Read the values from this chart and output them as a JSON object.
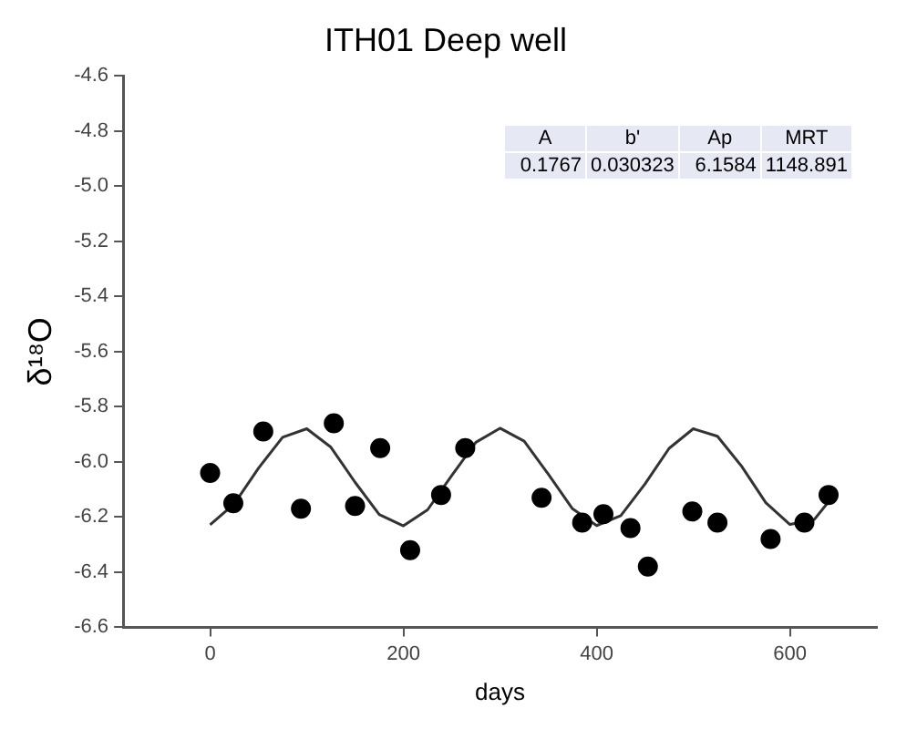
{
  "chart_data": {
    "type": "scatter",
    "title": "ITH01 Deep well",
    "xlabel": "days",
    "ylabel": "δ¹⁸O",
    "xlim": [
      -90,
      690
    ],
    "xticks": [
      0,
      200,
      400,
      600
    ],
    "ylim": [
      -6.6,
      -4.6
    ],
    "yticks": [
      {
        "value": -6.6,
        "label": "-6.6"
      },
      {
        "value": -6.4,
        "label": "-6.4"
      },
      {
        "value": -6.2,
        "label": "-6.2"
      },
      {
        "value": -6,
        "label": "-6.0"
      },
      {
        "value": -5.8,
        "label": "-5.8"
      },
      {
        "value": -5.6,
        "label": "-5.6"
      },
      {
        "value": -5.4,
        "label": "-5.4"
      },
      {
        "value": -5.2,
        "label": "-5.2"
      },
      {
        "value": -5,
        "label": "-5.0"
      },
      {
        "value": -4.8,
        "label": "-4.8"
      },
      {
        "value": -4.6,
        "label": "-4.6"
      }
    ],
    "grid": false,
    "legend": false,
    "annotations": [
      "A",
      "b'",
      "Ap",
      "MRT",
      "0.1767",
      "0.030323",
      "6.1584",
      "1148.891"
    ],
    "series": [
      {
        "type": "scatter",
        "color": "#000000",
        "marker": "circle",
        "x": [
          0,
          24,
          55,
          94,
          128,
          150,
          176,
          207,
          239,
          264,
          343,
          385,
          407,
          435,
          453,
          499,
          525,
          580,
          615,
          640
        ],
        "values": [
          -6.04,
          -6.15,
          -5.89,
          -6.17,
          -5.86,
          -6.16,
          -5.95,
          -6.32,
          -6.12,
          -5.95,
          -6.13,
          -6.22,
          -6.19,
          -6.24,
          -6.38,
          -6.18,
          -6.22,
          -6.28,
          -6.22,
          -6.12
        ]
      },
      {
        "type": "line",
        "color": "#333333",
        "marker": "none",
        "line_style": "solid",
        "x": [
          0,
          25,
          50,
          75,
          100,
          125,
          150,
          175,
          200,
          225,
          250,
          275,
          300,
          325,
          350,
          375,
          400,
          425,
          450,
          475,
          500,
          525,
          550,
          575,
          600,
          625,
          645
        ],
        "values": [
          -6.228,
          -6.152,
          -6.023,
          -5.911,
          -5.88,
          -5.947,
          -6.074,
          -6.191,
          -6.232,
          -6.174,
          -6.05,
          -5.929,
          -5.878,
          -5.925,
          -6.045,
          -6.17,
          -6.231,
          -6.195,
          -6.08,
          -5.951,
          -5.88,
          -5.907,
          -6.016,
          -6.148,
          -6.227,
          -6.21,
          -6.123
        ]
      }
    ]
  }
}
